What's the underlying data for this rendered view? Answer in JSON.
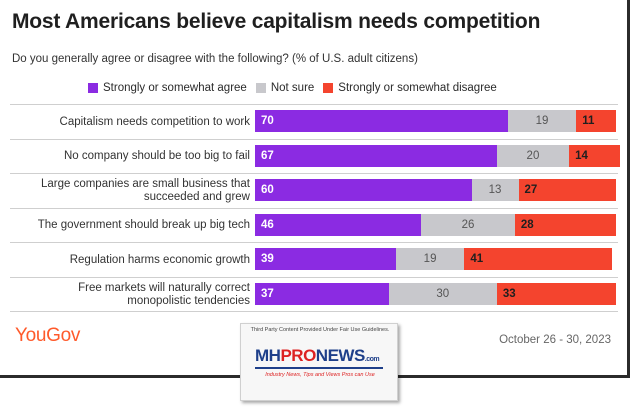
{
  "title": "Most Americans believe capitalism needs competition",
  "subtitle": "Do you generally agree or disagree with the following? (% of U.S. adult citizens)",
  "colors": {
    "agree": "#8b2be2",
    "not_sure": "#c8c8cc",
    "disagree": "#f4442e",
    "brand": "#ff5a2b"
  },
  "chart_data": {
    "type": "bar",
    "orientation": "horizontal",
    "stacked": true,
    "categories": [
      "Capitalism needs competition to work",
      "No company should be too big to fail",
      "Large companies are small business that succeeded and grew",
      "The government should break up big tech",
      "Regulation harms economic growth",
      "Free markets will naturally correct monopolistic tendencies"
    ],
    "series": [
      {
        "name": "Strongly or somewhat agree",
        "values": [
          70,
          67,
          60,
          46,
          39,
          37
        ]
      },
      {
        "name": "Not sure",
        "values": [
          19,
          20,
          13,
          26,
          19,
          30
        ]
      },
      {
        "name": "Strongly or somewhat disagree",
        "values": [
          11,
          14,
          27,
          28,
          41,
          33
        ]
      }
    ],
    "xlim": [
      0,
      100
    ],
    "legend_position": "top-left",
    "grid": false
  },
  "footer": {
    "brand": "YouGov",
    "date": "October 26 - 30, 2023"
  },
  "watermark": {
    "disclaimer": "Third Party Content Provided Under Fair Use Guidelines.",
    "logo_mh": "MH",
    "logo_pro": "PRO",
    "logo_news": "NEWS",
    "logo_domain": ".com",
    "tagline": "Industry News, Tips and Views Pros can Use"
  }
}
